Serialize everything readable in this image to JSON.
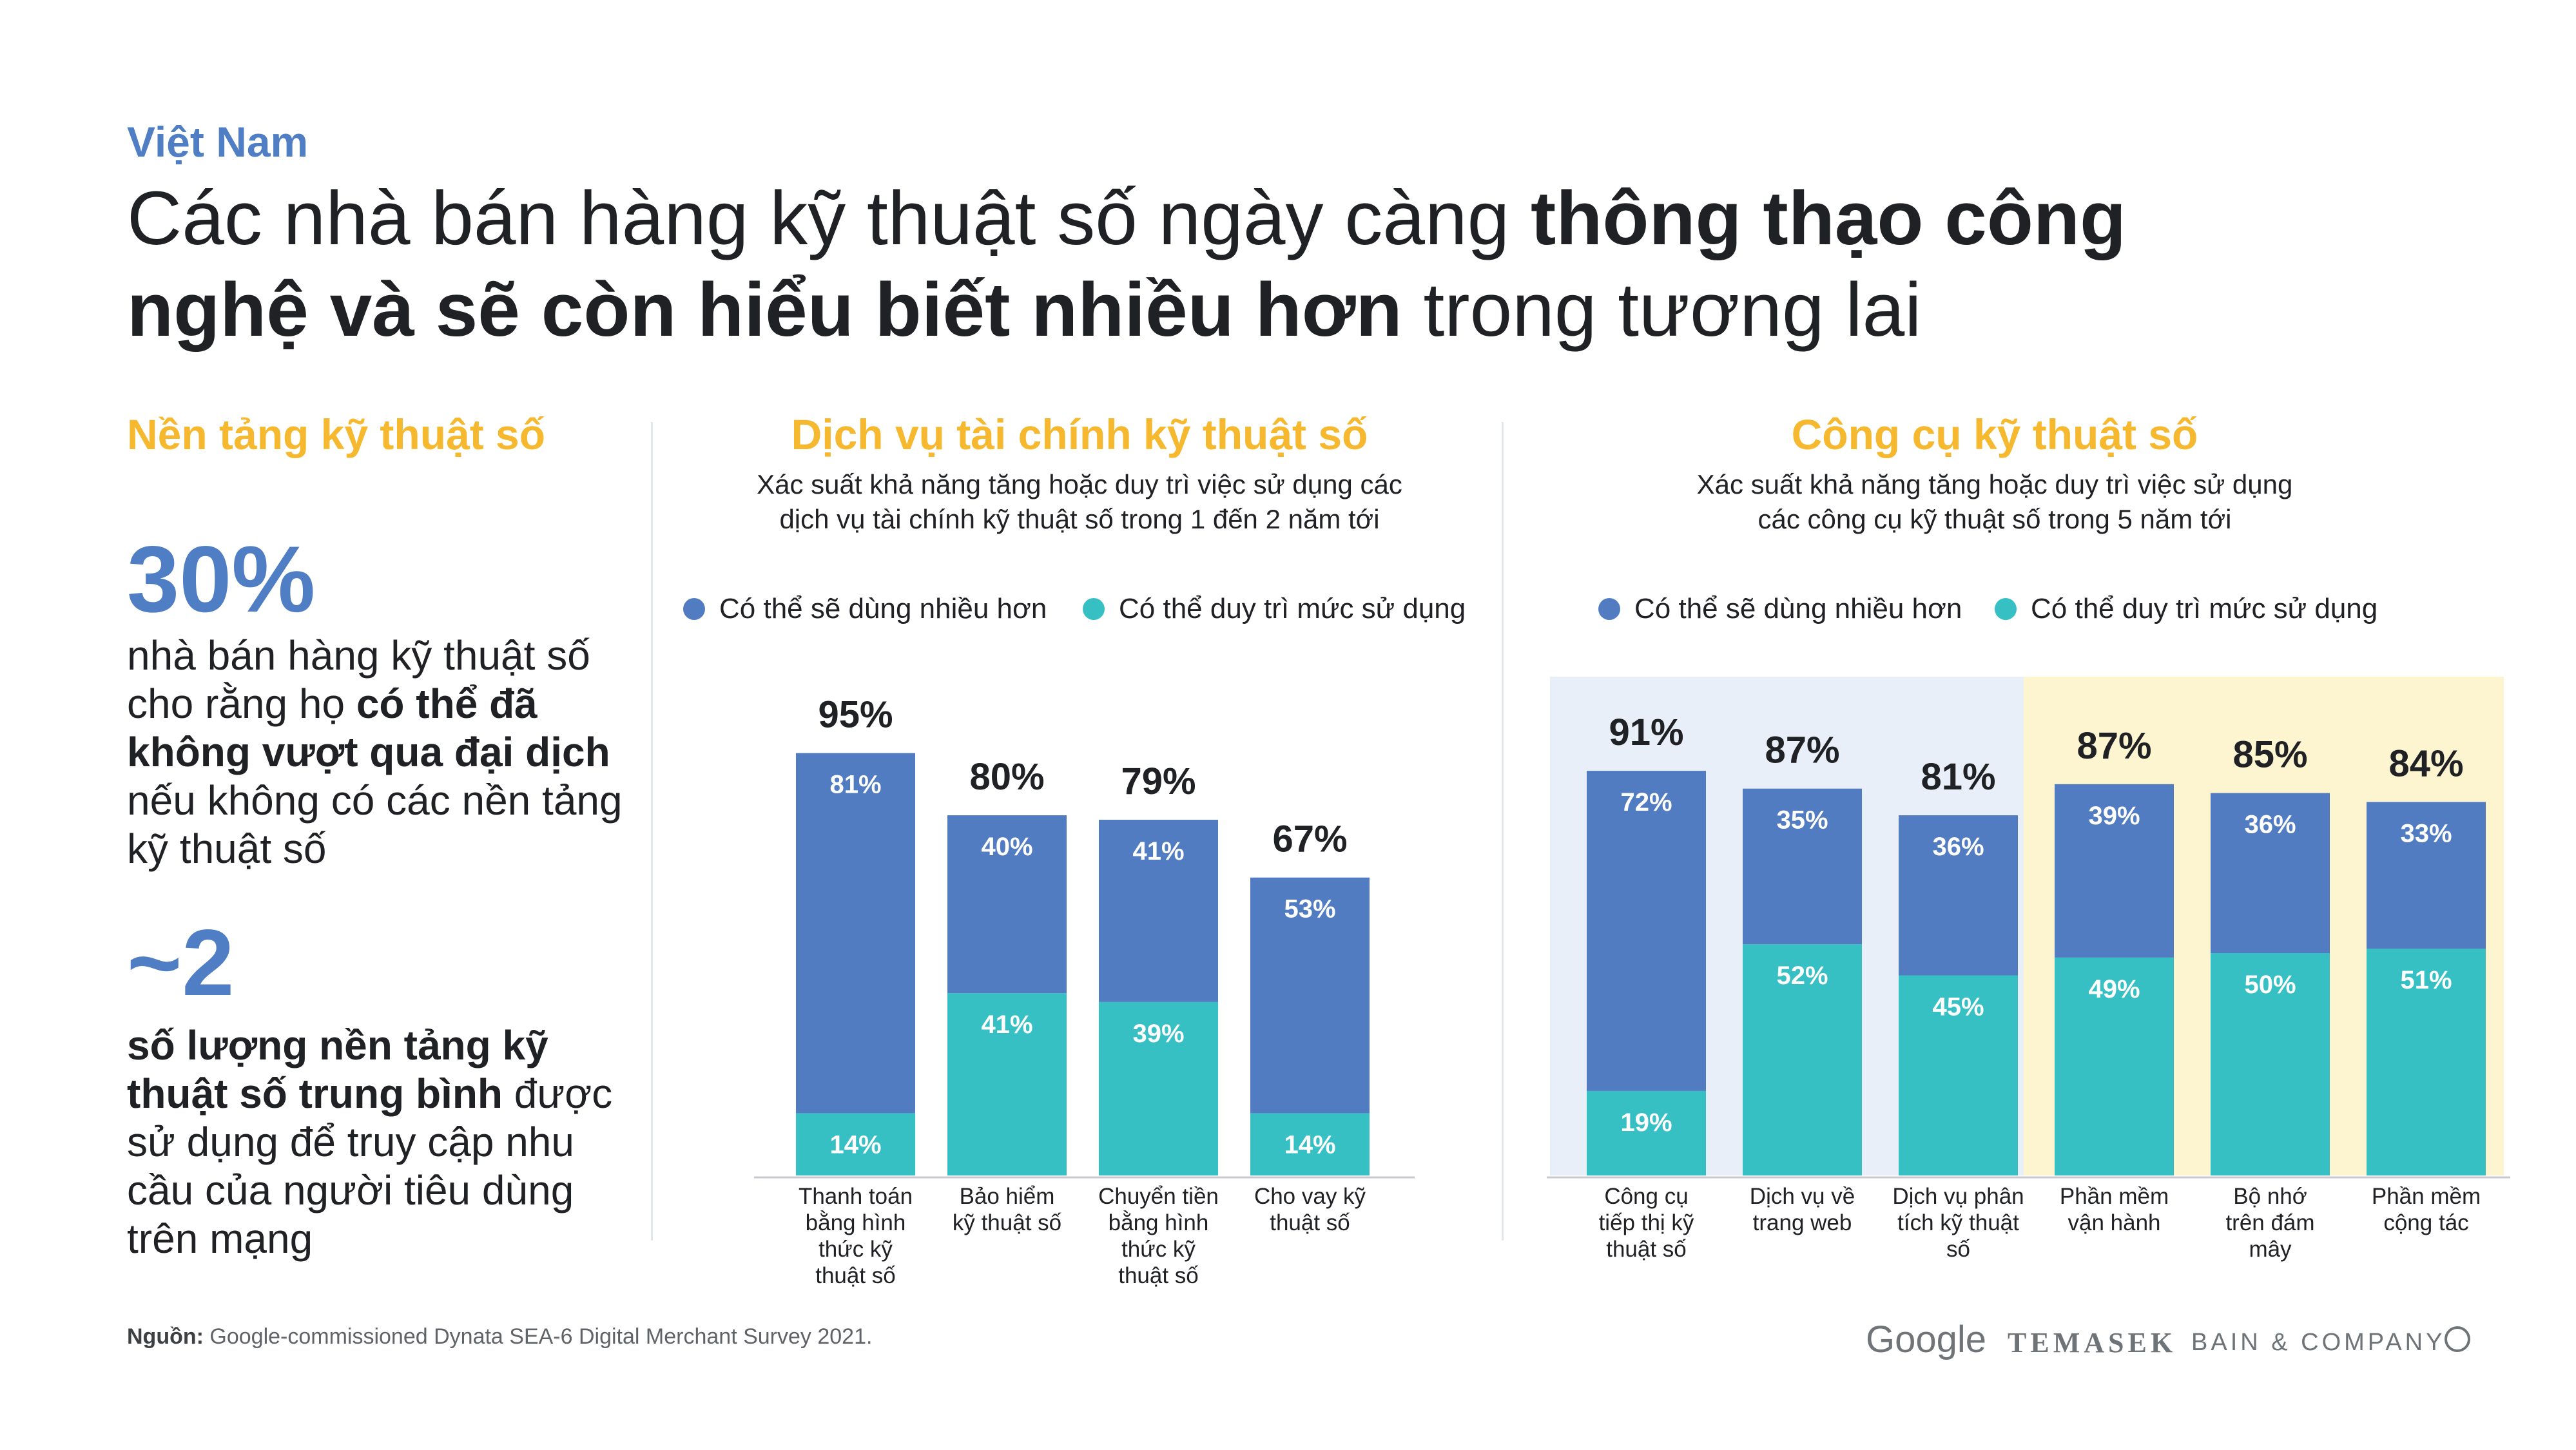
{
  "header": {
    "eyebrow": "Việt Nam",
    "headline_part1": "Các nhà bán hàng kỹ thuật số ngày càng ",
    "headline_bold1": "thông thạo công nghệ và sẽ còn hiểu biết nhiều hơn",
    "headline_part2": " trong tương lai"
  },
  "left_panel": {
    "title": "Nền tảng kỹ thuật số",
    "stat1": {
      "number": "30%",
      "text_a": "nhà bán hàng kỹ thuật số cho rằng họ ",
      "text_bold": "có thể đã không vượt qua đại dịch",
      "text_b": " nếu không có các nền tảng kỹ thuật số"
    },
    "stat2": {
      "number": "~2",
      "text_bold": "số lượng nền tảng kỹ thuật số trung bình",
      "text_b": " được sử dụng để truy cập nhu cầu của người tiêu dùng trên mạng"
    }
  },
  "colors": {
    "more": "#517cc1",
    "maintain": "#36c0c3",
    "panel_blue": "#e9eff8",
    "panel_yellow": "#fdf4d0",
    "title_yellow": "#f5b82e"
  },
  "legend": {
    "more": "Có thể sẽ dùng nhiều hơn",
    "maintain": "Có thể duy trì mức sử dụng"
  },
  "chart_data": [
    {
      "type": "bar",
      "stacked": true,
      "title": "Dịch vụ tài chính kỹ thuật số",
      "subtitle_line1": "Xác suất khả năng tăng hoặc duy trì việc sử dụng các",
      "subtitle_line2": "dịch vụ tài chính kỹ thuật số trong 1 đến 2 năm tới",
      "categories": [
        [
          "Thanh toán",
          "bằng hình",
          "thức kỹ",
          "thuật số"
        ],
        [
          "Bảo hiểm",
          "kỹ thuật số"
        ],
        [
          "Chuyển tiền",
          "bằng hình",
          "thức kỹ",
          "thuật số"
        ],
        [
          "Cho vay kỹ",
          "thuật số"
        ]
      ],
      "series": [
        {
          "name": "Có thể duy trì mức sử dụng",
          "values": [
            14,
            41,
            39,
            14
          ]
        },
        {
          "name": "Có thể sẽ dùng nhiều hơn",
          "values": [
            81,
            40,
            41,
            53
          ]
        }
      ],
      "totals": [
        95,
        80,
        79,
        67
      ],
      "ylim": [
        0,
        100
      ]
    },
    {
      "type": "bar",
      "stacked": true,
      "title": "Công cụ kỹ thuật số",
      "subtitle_line1": "Xác suất khả năng tăng hoặc duy trì việc sử dụng",
      "subtitle_line2": "các công cụ kỹ thuật số trong 5 năm tới",
      "categories": [
        [
          "Công cụ",
          "tiếp thị kỹ",
          "thuật số"
        ],
        [
          "Dịch vụ về",
          "trang web"
        ],
        [
          "Dịch vụ phân",
          "tích kỹ thuật",
          "số"
        ],
        [
          "Phần mềm",
          "vận hành"
        ],
        [
          "Bộ nhớ",
          "trên đám",
          "mây"
        ],
        [
          "Phần mềm",
          "cộng tác"
        ]
      ],
      "series": [
        {
          "name": "Có thể duy trì mức sử dụng",
          "values": [
            19,
            52,
            45,
            49,
            50,
            51
          ]
        },
        {
          "name": "Có thể sẽ dùng nhiều hơn",
          "values": [
            72,
            35,
            36,
            39,
            36,
            33
          ]
        }
      ],
      "totals": [
        91,
        87,
        81,
        87,
        85,
        84
      ],
      "ylim": [
        0,
        100
      ]
    }
  ],
  "footer": {
    "source_label": "Nguồn:",
    "source_text": " Google-commissioned Dynata SEA-6 Digital Merchant Survey 2021.",
    "logos": [
      "Google",
      "TEMASEK",
      "BAIN & COMPANY"
    ]
  }
}
